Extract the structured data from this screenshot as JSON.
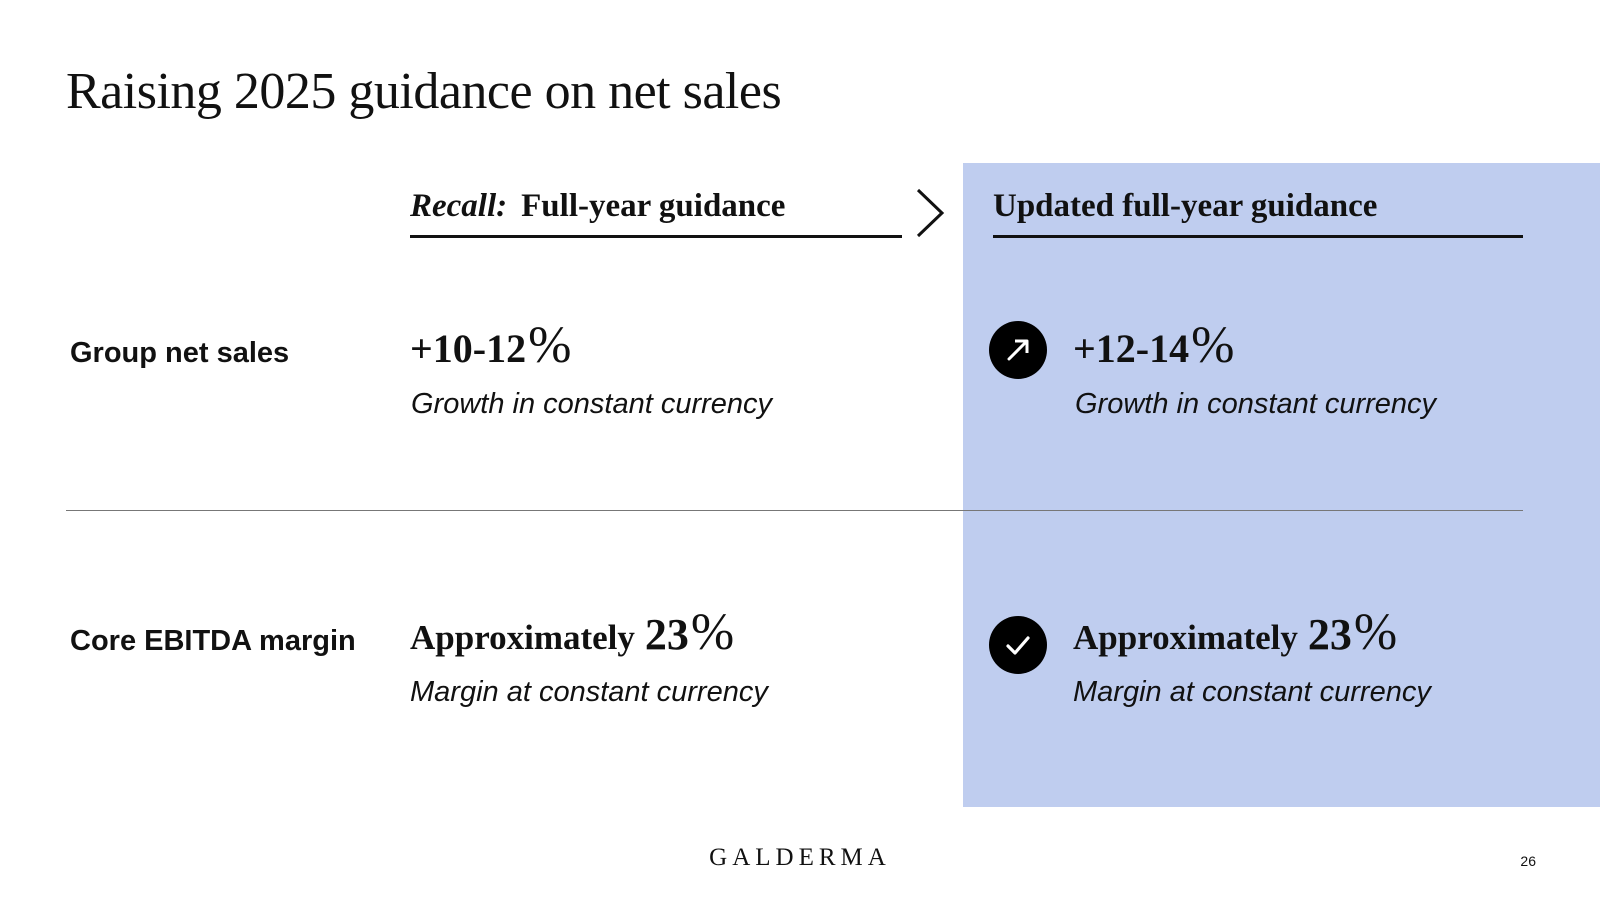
{
  "slide": {
    "title": "Raising 2025 guidance on net sales",
    "page_number": "26",
    "logo": "GALDERMA"
  },
  "headers": {
    "recall_prefix": "Recall:",
    "recall_label": "Full-year guidance",
    "updated_label": "Updated full-year guidance"
  },
  "rows": [
    {
      "label": "Group net sales",
      "recall": {
        "value": "+10-12",
        "unit": "%",
        "note": "Growth in constant currency"
      },
      "updated": {
        "value": "+12-14",
        "unit": "%",
        "note": "Growth in constant currency",
        "status_icon": "arrow-up-right-icon"
      }
    },
    {
      "label": "Core EBITDA margin",
      "recall": {
        "prefix": "Approximately",
        "value": "23",
        "unit": "%",
        "note": "Margin at constant currency"
      },
      "updated": {
        "prefix": "Approximately",
        "value": "23",
        "unit": "%",
        "note": "Margin at constant currency",
        "status_icon": "checkmark-icon"
      }
    }
  ],
  "colors": {
    "highlight_panel": "#bfcdef",
    "text": "#111111",
    "icon_background": "#000000"
  }
}
